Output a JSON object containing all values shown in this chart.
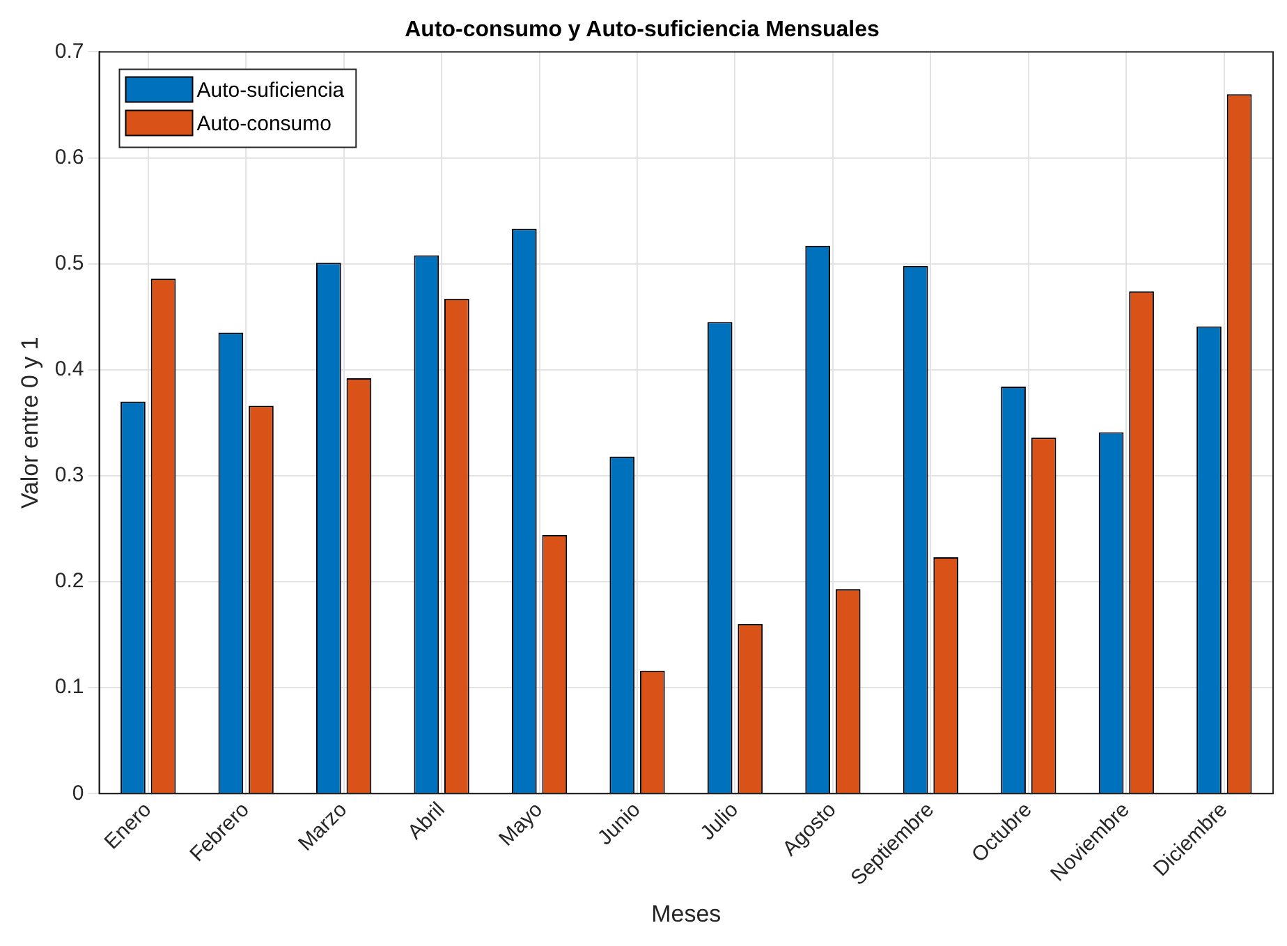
{
  "chart_data": {
    "type": "bar",
    "title": "Auto-consumo y Auto-suficiencia Mensuales",
    "xlabel": "Meses",
    "ylabel": "Valor entre 0 y 1",
    "categories": [
      "Enero",
      "Febrero",
      "Marzo",
      "Abril",
      "Mayo",
      "Junio",
      "Julio",
      "Agosto",
      "Septiembre",
      "Octubre",
      "Noviembre",
      "Diciembre"
    ],
    "series": [
      {
        "name": "Auto-suficiencia",
        "color": "#0072bd",
        "values": [
          0.37,
          0.435,
          0.501,
          0.508,
          0.533,
          0.318,
          0.445,
          0.517,
          0.498,
          0.384,
          0.341,
          0.441
        ]
      },
      {
        "name": "Auto-consumo",
        "color": "#d95319",
        "values": [
          0.486,
          0.366,
          0.392,
          0.467,
          0.244,
          0.116,
          0.16,
          0.193,
          0.223,
          0.336,
          0.474,
          0.66
        ]
      }
    ],
    "ylim": [
      0,
      0.7
    ],
    "yticks": [
      0,
      0.1,
      0.2,
      0.3,
      0.4,
      0.5,
      0.6,
      0.7
    ],
    "grid": true,
    "legend": "top left"
  }
}
